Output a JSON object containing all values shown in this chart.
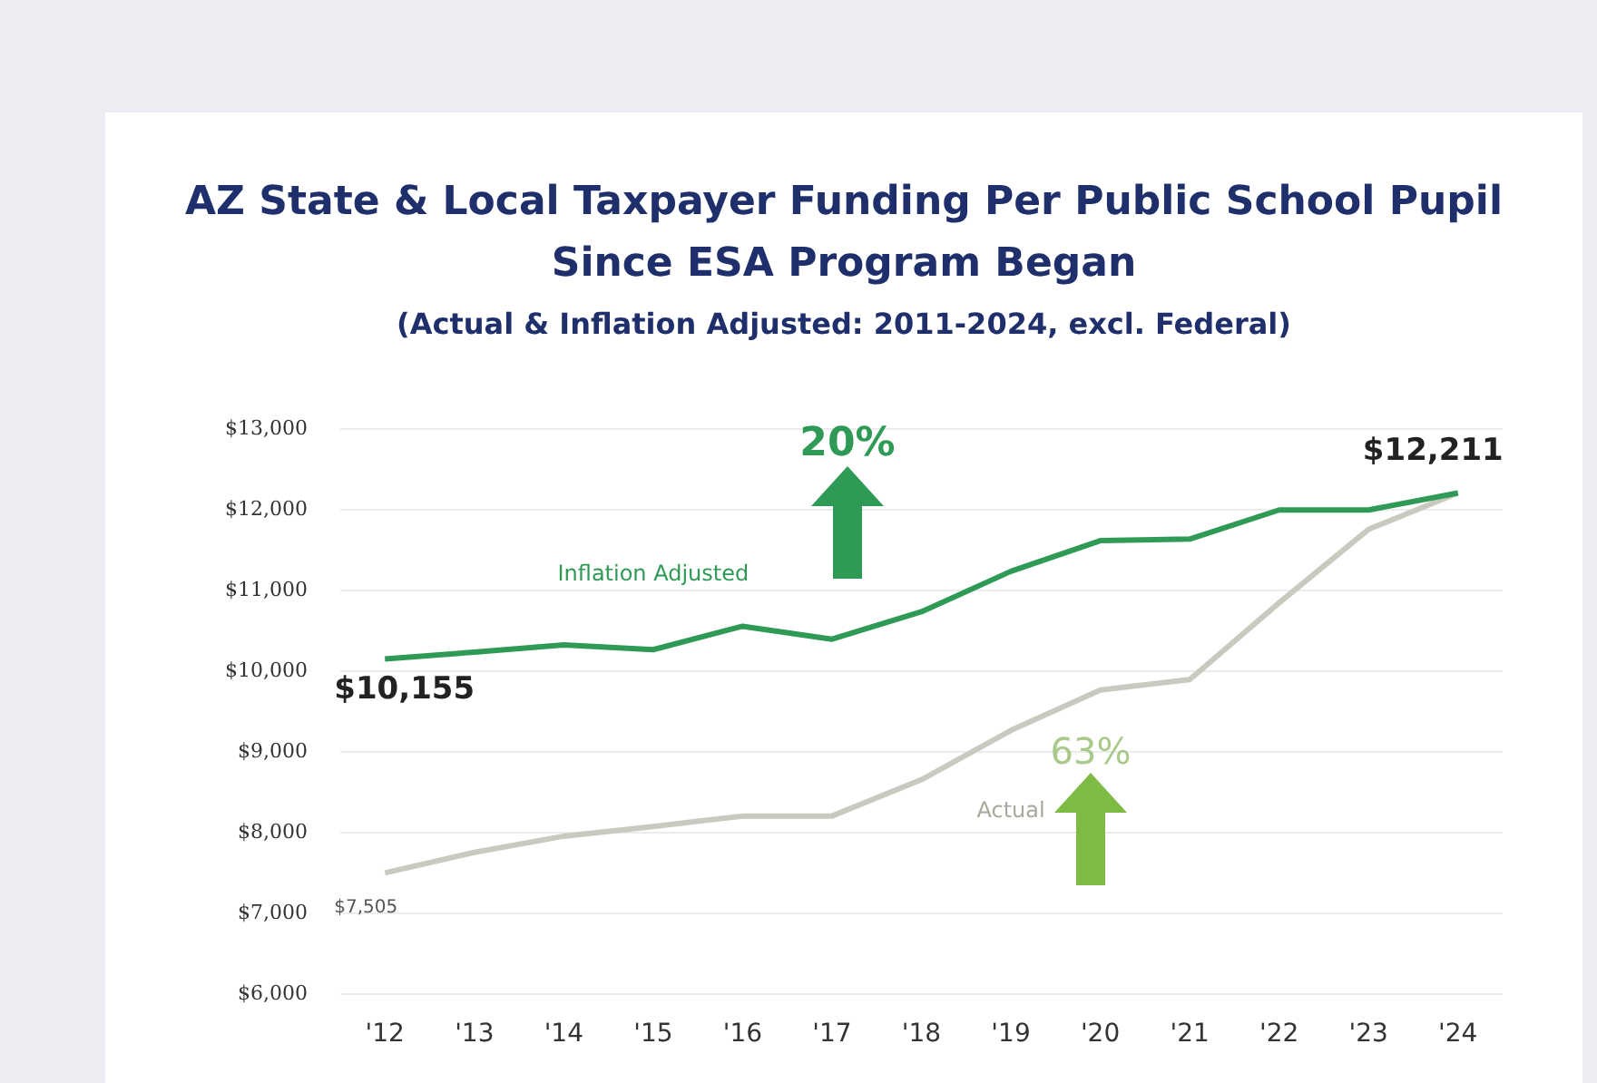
{
  "chart_data": {
    "type": "line",
    "title": "AZ State & Local Taxpayer Funding Per Public School Pupil Since ESA Program Began",
    "subtitle": "(Actual & Inflation Adjusted: 2011-2024, excl. Federal)",
    "categories": [
      "'12",
      "'13",
      "'14",
      "'15",
      "'16",
      "'17",
      "'18",
      "'19",
      "'20",
      "'21",
      "'22",
      "'23",
      "'24"
    ],
    "series": [
      {
        "name": "Inflation Adjusted",
        "color": "#2e9a55",
        "values": [
          10155,
          10240,
          10330,
          10270,
          10560,
          10400,
          10740,
          11240,
          11620,
          11640,
          12000,
          12000,
          12211
        ]
      },
      {
        "name": "Actual",
        "color": "#c9c9c0",
        "values": [
          7505,
          7760,
          7960,
          8080,
          8210,
          8210,
          8660,
          9270,
          9770,
          9900,
          10850,
          11760,
          12211
        ]
      }
    ],
    "ylim": [
      6000,
      13000
    ],
    "yticks": [
      {
        "value": 6000,
        "label": "$6,000"
      },
      {
        "value": 7000,
        "label": "$7,000"
      },
      {
        "value": 8000,
        "label": "$8,000"
      },
      {
        "value": 9000,
        "label": "$9,000"
      },
      {
        "value": 10000,
        "label": "$10,000"
      },
      {
        "value": 11000,
        "label": "$11,000"
      },
      {
        "value": 12000,
        "label": "$12,000"
      },
      {
        "value": 13000,
        "label": "$13,000"
      }
    ],
    "grid": "y",
    "legend": false,
    "marker": "none",
    "line_style": "solid",
    "annotations": [
      {
        "text": "$10,155",
        "x": "'12",
        "y": 10155
      },
      {
        "text": "$12,211",
        "x": "'24",
        "y": 12211
      },
      {
        "text": "$7,505",
        "x": "'12",
        "y": 7505
      },
      "20%",
      "63%"
    ]
  }
}
